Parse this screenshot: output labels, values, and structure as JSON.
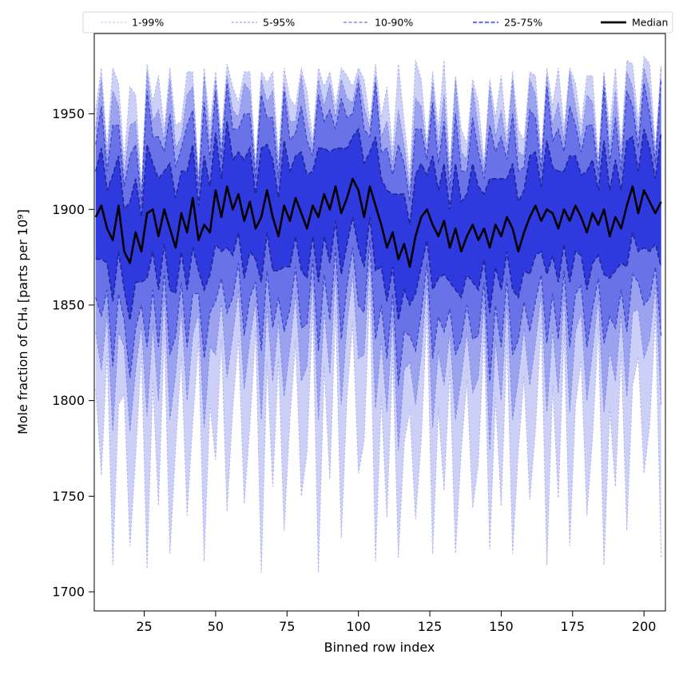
{
  "chart_data": {
    "type": "area",
    "title": "",
    "xlabel": "Binned row index",
    "ylabel": "Mole fraction of CH₄ [parts per 10⁹]",
    "xlim": [
      7.5,
      207.5
    ],
    "ylim": [
      1690,
      1992
    ],
    "xticks": [
      25,
      50,
      75,
      100,
      125,
      150,
      175,
      200
    ],
    "yticks": [
      1700,
      1750,
      1800,
      1850,
      1900,
      1950
    ],
    "grid": false,
    "legend_position": "top",
    "x": {
      "start": 8,
      "step": 2,
      "count": 100
    },
    "median_color": "#000000",
    "median_width": 2.6,
    "median": [
      1896,
      1902,
      1890,
      1884,
      1902,
      1878,
      1872,
      1888,
      1878,
      1898,
      1900,
      1886,
      1900,
      1890,
      1880,
      1898,
      1888,
      1906,
      1884,
      1892,
      1888,
      1910,
      1896,
      1912,
      1900,
      1908,
      1894,
      1904,
      1890,
      1896,
      1910,
      1896,
      1886,
      1902,
      1894,
      1906,
      1898,
      1890,
      1902,
      1896,
      1908,
      1900,
      1912,
      1898,
      1906,
      1916,
      1910,
      1896,
      1912,
      1902,
      1892,
      1880,
      1888,
      1874,
      1882,
      1870,
      1886,
      1896,
      1900,
      1892,
      1886,
      1894,
      1880,
      1890,
      1878,
      1886,
      1892,
      1884,
      1890,
      1880,
      1892,
      1886,
      1896,
      1890,
      1878,
      1888,
      1896,
      1902,
      1894,
      1900,
      1898,
      1890,
      1900,
      1894,
      1902,
      1896,
      1888,
      1898,
      1892,
      1900,
      1886,
      1896,
      1890,
      1902,
      1912,
      1898,
      1910,
      1904,
      1898,
      1904
    ],
    "bands": [
      {
        "name": "1-99%",
        "fill": "#cdd0f6",
        "edge": "#a9aff0",
        "dash": "2.5,2.5",
        "edge_width": 1,
        "upper": [
          1952,
          1974,
          1932,
          1974,
          1966,
          1926,
          1964,
          1960,
          1912,
          1976,
          1956,
          1970,
          1942,
          1974,
          1944,
          1946,
          1972,
          1972,
          1918,
          1974,
          1944,
          1972,
          1938,
          1976,
          1964,
          1956,
          1972,
          1972,
          1924,
          1972,
          1966,
          1972,
          1928,
          1974,
          1958,
          1954,
          1974,
          1962,
          1936,
          1974,
          1964,
          1972,
          1954,
          1974,
          1970,
          1964,
          1974,
          1968,
          1946,
          1976,
          1948,
          1964,
          1930,
          1976,
          1946,
          1918,
          1978,
          1968,
          1934,
          1972,
          1942,
          1978,
          1922,
          1970,
          1942,
          1934,
          1968,
          1956,
          1924,
          1968,
          1948,
          1970,
          1938,
          1972,
          1942,
          1936,
          1972,
          1970,
          1928,
          1974,
          1954,
          1974,
          1942,
          1974,
          1966,
          1944,
          1970,
          1970,
          1926,
          1972,
          1942,
          1974,
          1932,
          1978,
          1976,
          1946,
          1980,
          1976,
          1932,
          1976
        ],
        "lower": [
          1806,
          1761,
          1826,
          1714,
          1798,
          1803,
          1724,
          1771,
          1825,
          1712,
          1810,
          1745,
          1836,
          1720,
          1776,
          1823,
          1740,
          1789,
          1831,
          1716,
          1798,
          1769,
          1832,
          1742,
          1796,
          1833,
          1746,
          1787,
          1837,
          1710,
          1820,
          1755,
          1822,
          1732,
          1790,
          1831,
          1750,
          1773,
          1849,
          1710,
          1818,
          1759,
          1848,
          1728,
          1802,
          1841,
          1762,
          1779,
          1859,
          1716,
          1802,
          1739,
          1824,
          1718,
          1778,
          1795,
          1738,
          1779,
          1847,
          1720,
          1796,
          1753,
          1816,
          1720,
          1774,
          1811,
          1744,
          1767,
          1837,
          1722,
          1802,
          1745,
          1832,
          1720,
          1774,
          1813,
          1748,
          1785,
          1841,
          1714,
          1808,
          1749,
          1836,
          1724,
          1798,
          1821,
          1740,
          1781,
          1839,
          1714,
          1796,
          1755,
          1826,
          1732,
          1808,
          1823,
          1762,
          1787,
          1845,
          1718
        ]
      },
      {
        "name": "5-95%",
        "fill": "#9ba2ee",
        "edge": "#7f87ea",
        "dash": "3.5,2.5",
        "edge_width": 1,
        "upper": [
          1942,
          1968,
          1926,
          1962,
          1954,
          1918,
          1944,
          1946,
          1908,
          1972,
          1946,
          1952,
          1936,
          1968,
          1932,
          1938,
          1960,
          1964,
          1914,
          1970,
          1934,
          1968,
          1932,
          1970,
          1952,
          1948,
          1966,
          1962,
          1920,
          1968,
          1956,
          1962,
          1922,
          1966,
          1946,
          1946,
          1970,
          1948,
          1932,
          1968,
          1954,
          1966,
          1948,
          1968,
          1958,
          1956,
          1970,
          1954,
          1942,
          1970,
          1938,
          1946,
          1924,
          1952,
          1934,
          1910,
          1958,
          1954,
          1930,
          1966,
          1932,
          1960,
          1916,
          1968,
          1930,
          1926,
          1964,
          1942,
          1920,
          1964,
          1938,
          1952,
          1932,
          1968,
          1930,
          1928,
          1968,
          1960,
          1924,
          1970,
          1944,
          1956,
          1936,
          1972,
          1954,
          1936,
          1960,
          1956,
          1922,
          1970,
          1932,
          1962,
          1926,
          1972,
          1964,
          1938,
          1974,
          1962,
          1928,
          1974
        ],
        "lower": [
          1836,
          1816,
          1846,
          1784,
          1836,
          1828,
          1784,
          1816,
          1840,
          1792,
          1840,
          1800,
          1856,
          1790,
          1814,
          1848,
          1800,
          1834,
          1846,
          1786,
          1828,
          1824,
          1852,
          1812,
          1834,
          1858,
          1806,
          1832,
          1852,
          1790,
          1850,
          1810,
          1842,
          1802,
          1828,
          1856,
          1810,
          1818,
          1864,
          1790,
          1848,
          1814,
          1868,
          1798,
          1840,
          1866,
          1822,
          1824,
          1874,
          1796,
          1832,
          1794,
          1844,
          1774,
          1816,
          1820,
          1798,
          1824,
          1862,
          1786,
          1826,
          1808,
          1836,
          1790,
          1812,
          1836,
          1804,
          1812,
          1852,
          1774,
          1832,
          1800,
          1852,
          1790,
          1812,
          1838,
          1808,
          1830,
          1856,
          1794,
          1838,
          1804,
          1856,
          1794,
          1836,
          1846,
          1800,
          1826,
          1854,
          1794,
          1826,
          1810,
          1846,
          1802,
          1846,
          1848,
          1822,
          1832,
          1860,
          1798
        ]
      },
      {
        "name": "10-90%",
        "fill": "#6a72e7",
        "edge": "#3c45c9",
        "dash": "5,3",
        "edge_width": 1.3,
        "upper": [
          1934,
          1954,
          1920,
          1944,
          1944,
          1912,
          1928,
          1934,
          1904,
          1962,
          1938,
          1938,
          1930,
          1950,
          1922,
          1932,
          1944,
          1952,
          1910,
          1956,
          1926,
          1962,
          1926,
          1966,
          1942,
          1942,
          1950,
          1950,
          1916,
          1960,
          1948,
          1948,
          1916,
          1962,
          1936,
          1940,
          1954,
          1936,
          1928,
          1960,
          1946,
          1952,
          1942,
          1958,
          1948,
          1950,
          1966,
          1942,
          1938,
          1966,
          1930,
          1932,
          1918,
          1934,
          1924,
          1904,
          1942,
          1942,
          1926,
          1956,
          1924,
          1946,
          1910,
          1950,
          1920,
          1920,
          1948,
          1930,
          1916,
          1944,
          1930,
          1938,
          1926,
          1950,
          1920,
          1922,
          1952,
          1948,
          1920,
          1964,
          1936,
          1942,
          1930,
          1954,
          1944,
          1930,
          1944,
          1944,
          1918,
          1964,
          1924,
          1948,
          1920,
          1962,
          1954,
          1932,
          1966,
          1950,
          1924,
          1968
        ],
        "lower": [
          1854,
          1844,
          1858,
          1818,
          1856,
          1842,
          1812,
          1838,
          1850,
          1828,
          1858,
          1828,
          1868,
          1824,
          1834,
          1862,
          1828,
          1856,
          1856,
          1822,
          1846,
          1852,
          1864,
          1846,
          1854,
          1872,
          1834,
          1854,
          1862,
          1826,
          1868,
          1838,
          1854,
          1836,
          1848,
          1870,
          1838,
          1840,
          1874,
          1826,
          1866,
          1842,
          1880,
          1832,
          1860,
          1880,
          1850,
          1846,
          1884,
          1832,
          1850,
          1822,
          1856,
          1808,
          1836,
          1834,
          1826,
          1846,
          1872,
          1822,
          1844,
          1836,
          1848,
          1824,
          1832,
          1850,
          1832,
          1834,
          1862,
          1810,
          1850,
          1828,
          1864,
          1824,
          1832,
          1852,
          1836,
          1852,
          1866,
          1830,
          1856,
          1832,
          1868,
          1828,
          1856,
          1860,
          1828,
          1848,
          1864,
          1830,
          1844,
          1838,
          1858,
          1836,
          1866,
          1862,
          1850,
          1854,
          1870,
          1834
        ]
      },
      {
        "name": "25-75%",
        "fill": "#2e39de",
        "edge": "#20279d",
        "dash": "6,3",
        "edge_width": 1.7,
        "upper": [
          1920,
          1932,
          1910,
          1918,
          1928,
          1900,
          1904,
          1916,
          1896,
          1934,
          1924,
          1916,
          1920,
          1924,
          1906,
          1920,
          1920,
          1934,
          1902,
          1928,
          1912,
          1940,
          1916,
          1946,
          1926,
          1930,
          1926,
          1932,
          1908,
          1932,
          1934,
          1926,
          1906,
          1936,
          1920,
          1928,
          1930,
          1918,
          1920,
          1932,
          1932,
          1930,
          1932,
          1932,
          1932,
          1938,
          1942,
          1924,
          1930,
          1938,
          1916,
          1910,
          1908,
          1908,
          1908,
          1892,
          1918,
          1924,
          1918,
          1928,
          1910,
          1924,
          1900,
          1924,
          1904,
          1908,
          1924,
          1912,
          1908,
          1916,
          1916,
          1916,
          1916,
          1924,
          1904,
          1910,
          1928,
          1930,
          1912,
          1936,
          1922,
          1920,
          1920,
          1928,
          1928,
          1918,
          1920,
          1926,
          1910,
          1936,
          1910,
          1926,
          1910,
          1936,
          1938,
          1920,
          1942,
          1932,
          1916,
          1940
        ],
        "lower": [
          1874,
          1874,
          1872,
          1852,
          1878,
          1858,
          1842,
          1862,
          1862,
          1864,
          1878,
          1858,
          1882,
          1858,
          1856,
          1878,
          1858,
          1880,
          1868,
          1858,
          1866,
          1882,
          1878,
          1880,
          1876,
          1888,
          1864,
          1878,
          1874,
          1862,
          1888,
          1868,
          1868,
          1870,
          1870,
          1886,
          1868,
          1864,
          1886,
          1862,
          1886,
          1872,
          1894,
          1866,
          1882,
          1896,
          1880,
          1870,
          1896,
          1868,
          1870,
          1852,
          1870,
          1842,
          1858,
          1850,
          1856,
          1870,
          1884,
          1858,
          1864,
          1866,
          1862,
          1858,
          1854,
          1866,
          1862,
          1858,
          1874,
          1846,
          1870,
          1858,
          1878,
          1858,
          1854,
          1868,
          1866,
          1876,
          1878,
          1866,
          1876,
          1862,
          1882,
          1862,
          1878,
          1876,
          1858,
          1872,
          1876,
          1866,
          1864,
          1868,
          1872,
          1870,
          1888,
          1878,
          1880,
          1878,
          1882,
          1870
        ]
      }
    ],
    "legend": {
      "border_color": "#d9d9d9",
      "items": [
        {
          "label": "1-99%",
          "color": "#ccccf7",
          "dash": "3,2",
          "width": 1.2
        },
        {
          "label": "5-95%",
          "color": "#a3a3f2",
          "dash": "3,2",
          "width": 1.2
        },
        {
          "label": "10-90%",
          "color": "#8585f5",
          "dash": "4,2.5",
          "width": 1.5
        },
        {
          "label": "25-75%",
          "color": "#7070f2",
          "dash": "5,2.5",
          "width": 2.2
        },
        {
          "label": "Median",
          "color": "#000000",
          "dash": "",
          "width": 2.8
        }
      ]
    }
  }
}
